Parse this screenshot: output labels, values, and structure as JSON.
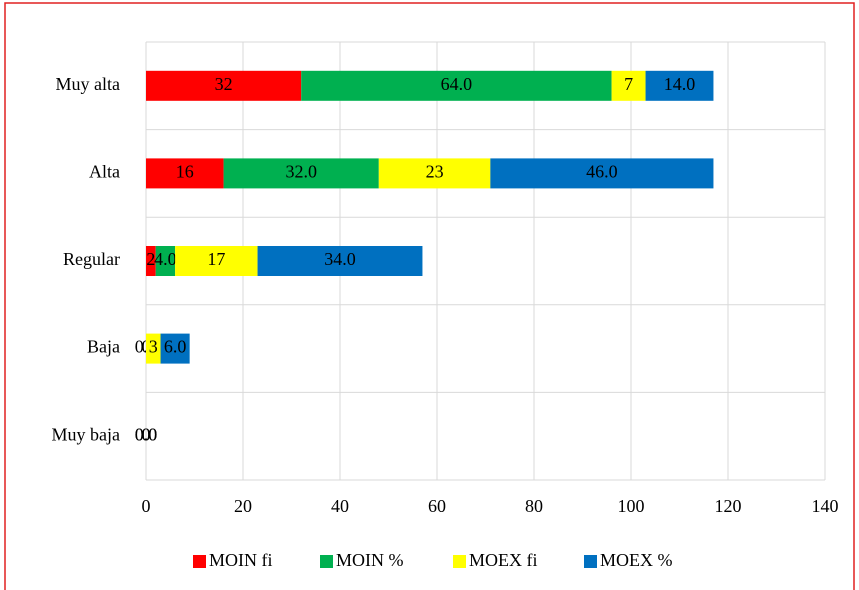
{
  "chart_data": {
    "type": "bar",
    "orientation": "horizontal",
    "stacked": true,
    "categories": [
      "Muy alta",
      "Alta",
      "Regular",
      "Baja",
      "Muy baja"
    ],
    "series": [
      {
        "name": "MOIN fi",
        "color": "#ff0000",
        "values": [
          32,
          16,
          2,
          0,
          0
        ]
      },
      {
        "name": "MOIN %",
        "color": "#00b050",
        "values": [
          64,
          32,
          4,
          0,
          0
        ],
        "value_labels": [
          "64.0",
          "32.0",
          "4.0",
          "0.0",
          "0.0"
        ]
      },
      {
        "name": "MOEX fi",
        "color": "#ffff00",
        "values": [
          7,
          23,
          17,
          3,
          0
        ]
      },
      {
        "name": "MOEX %",
        "color": "#0070c0",
        "values": [
          14,
          46,
          34,
          6,
          0
        ],
        "value_labels": [
          "14.0",
          "46.0",
          "34.0",
          "6.0",
          "0.0"
        ]
      }
    ],
    "xlim": [
      0,
      140
    ],
    "xticks": [
      0,
      20,
      40,
      60,
      80,
      100,
      120,
      140
    ],
    "grid": true,
    "legend": "bottom"
  }
}
